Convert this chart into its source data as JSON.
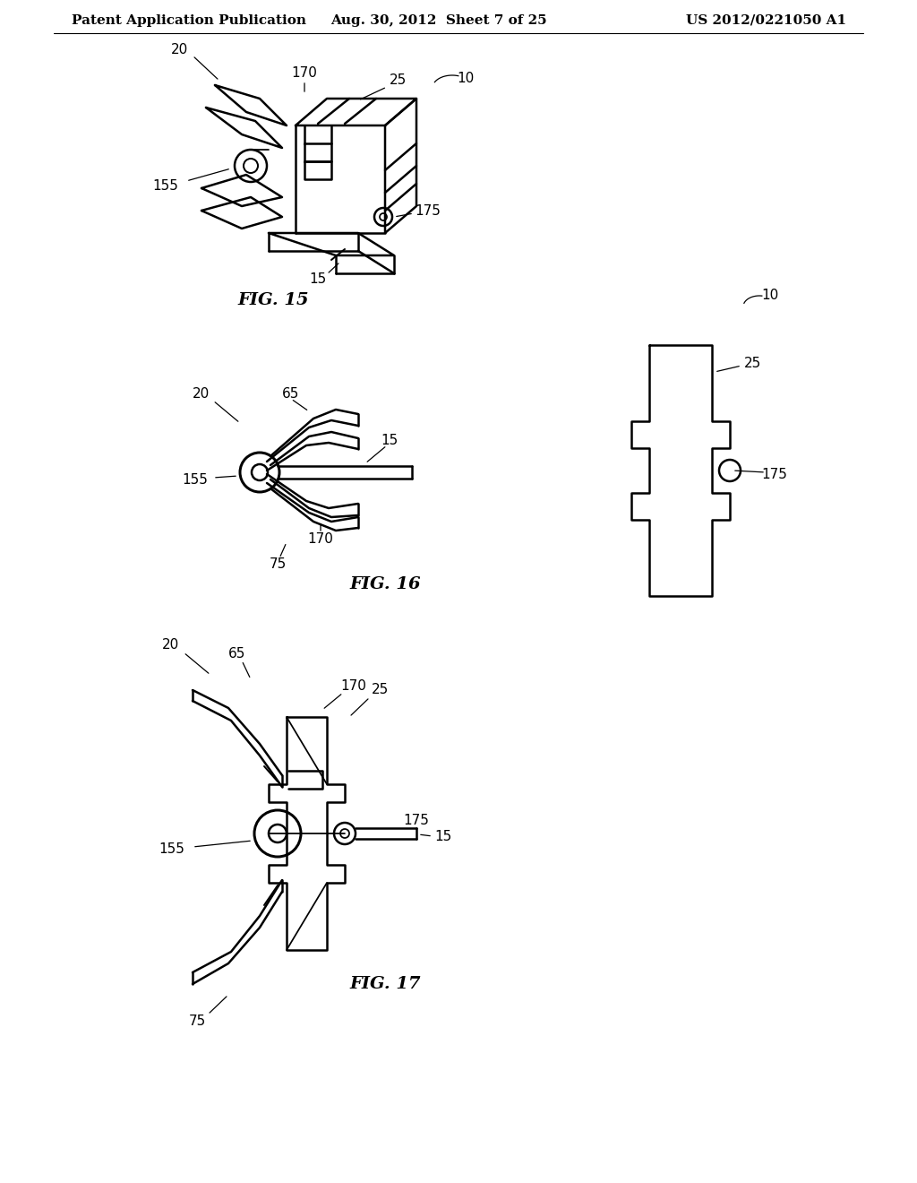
{
  "background_color": "#ffffff",
  "header_left": "Patent Application Publication",
  "header_center": "Aug. 30, 2012  Sheet 7 of 25",
  "header_right": "US 2012/0221050 A1",
  "fig15_caption": "FIG. 15",
  "fig16_caption": "FIG. 16",
  "fig17_caption": "FIG. 17",
  "text_color": "#000000",
  "line_color": "#000000",
  "line_width": 1.8,
  "header_fontsize": 11,
  "label_fontsize": 11,
  "caption_fontsize": 14
}
